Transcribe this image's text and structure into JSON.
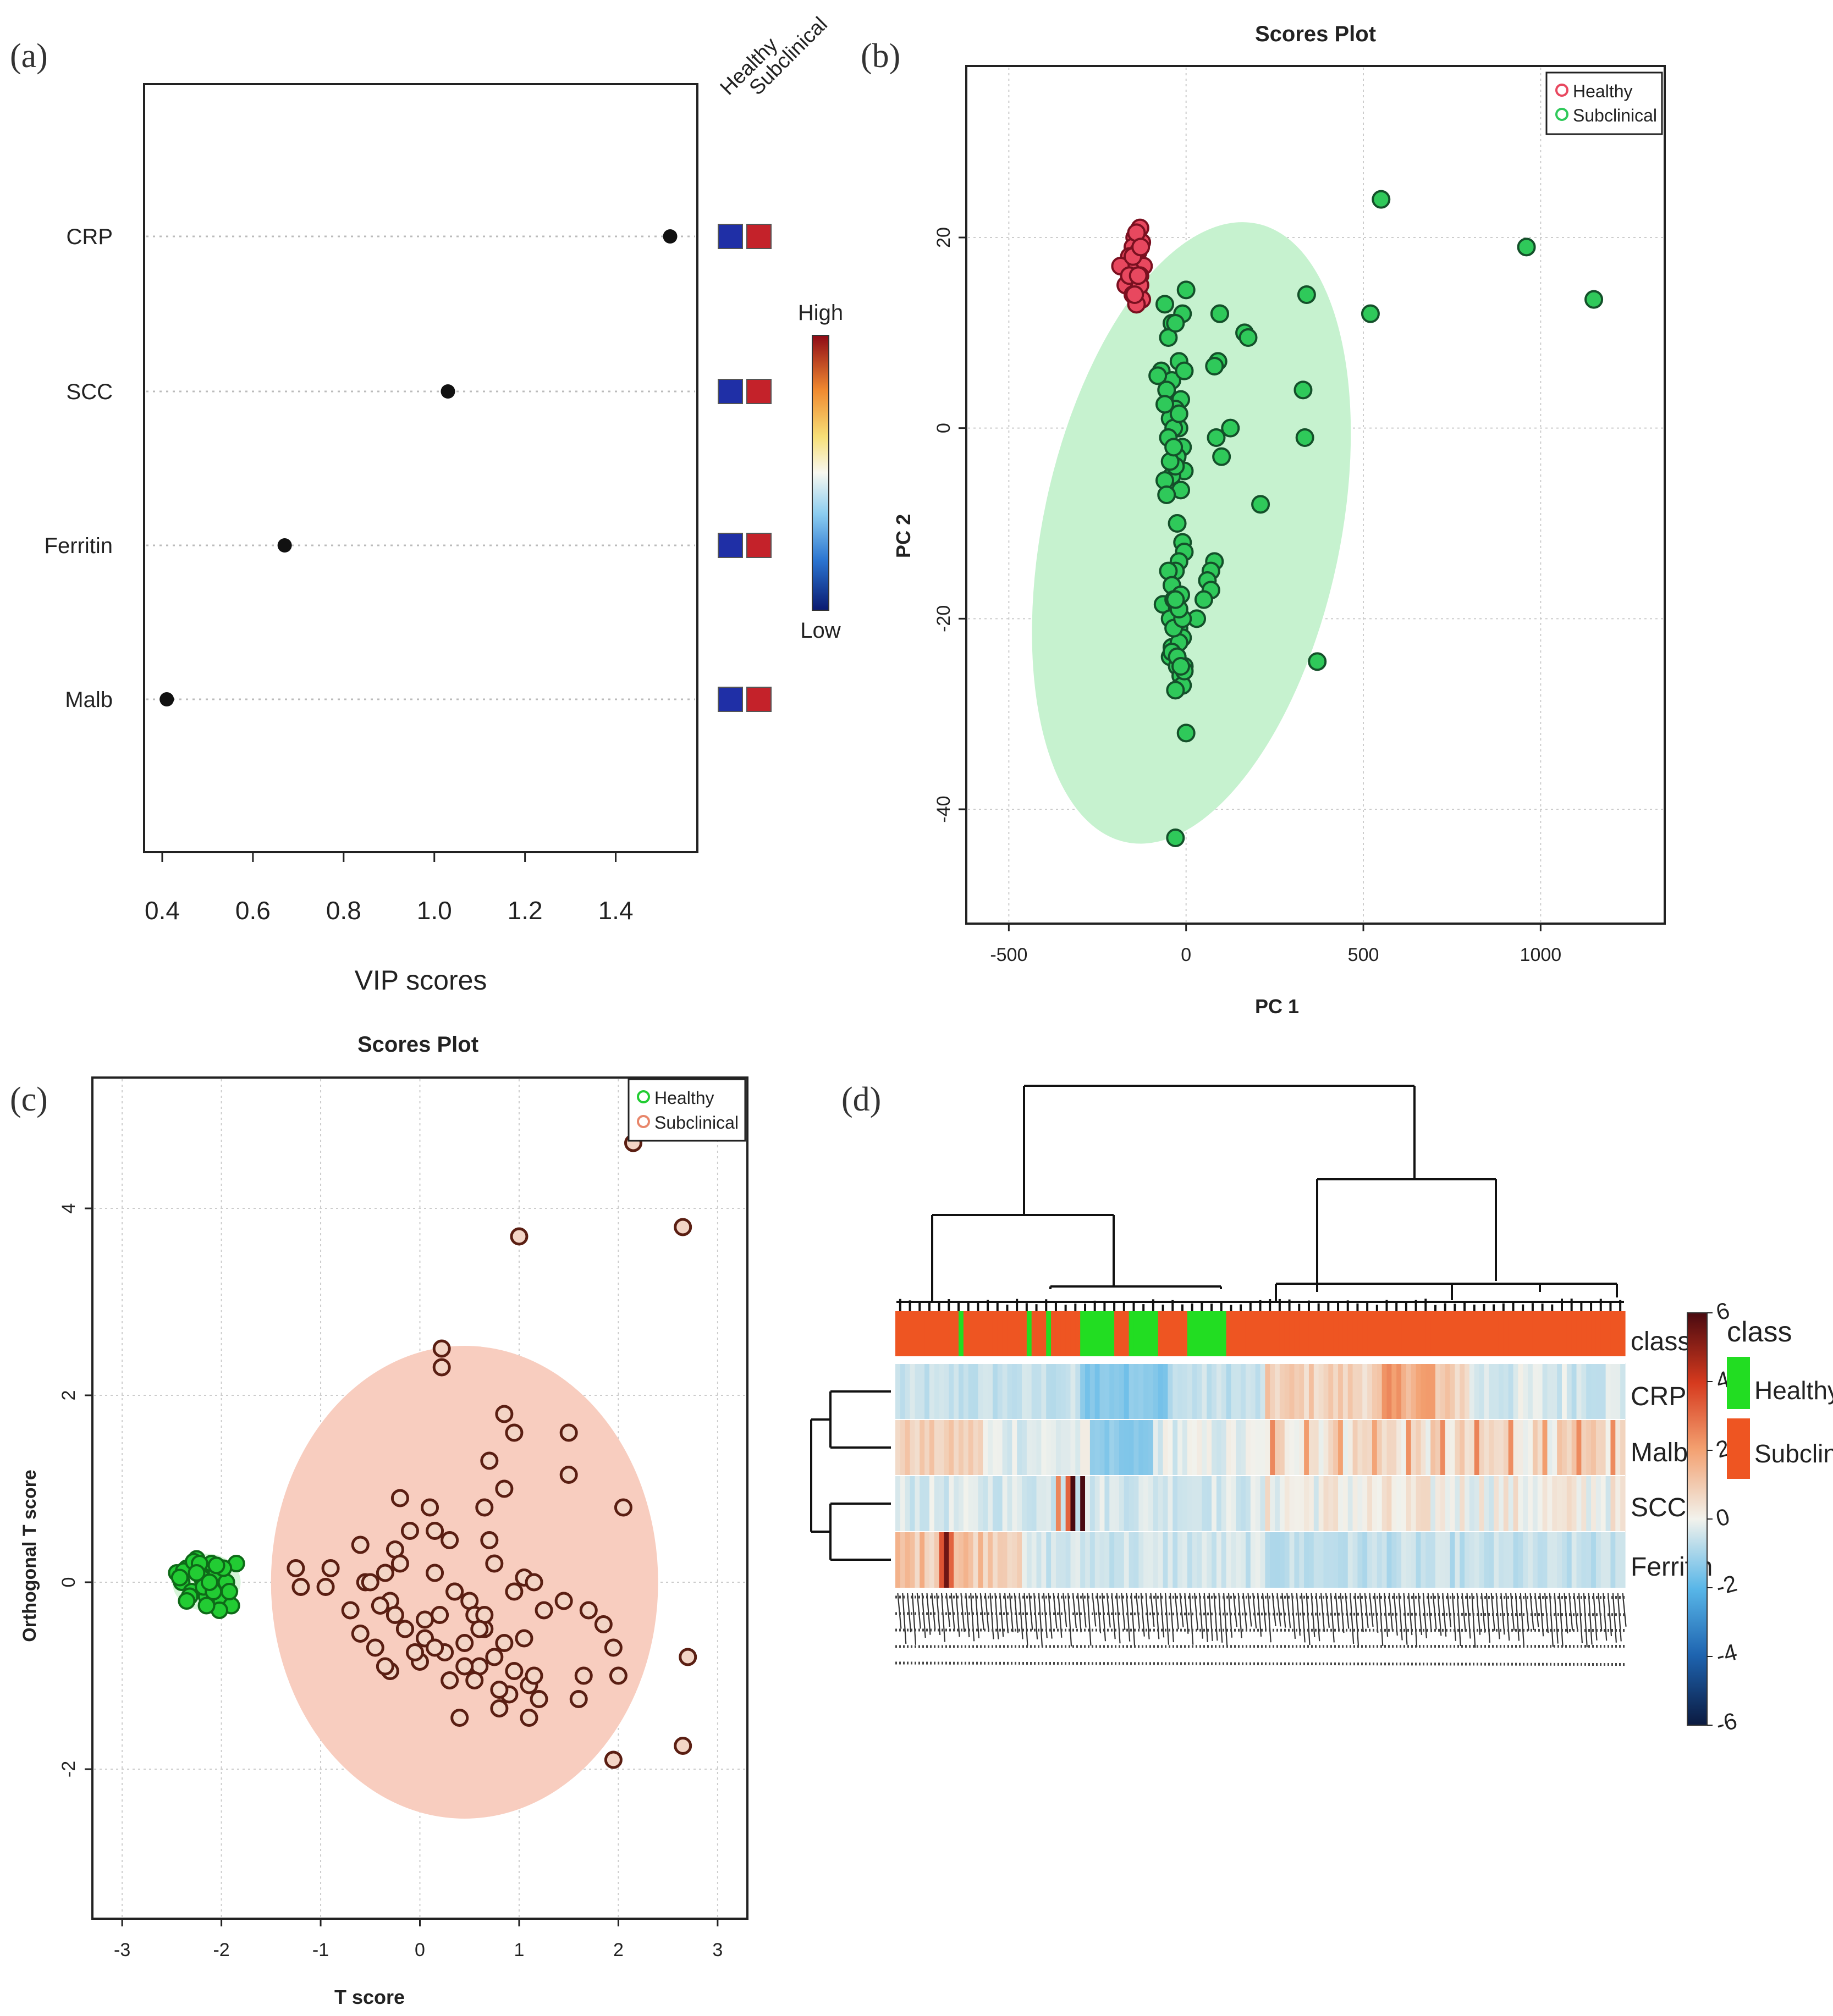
{
  "panel_labels": {
    "a": "(a)",
    "b": "(b)",
    "c": "(c)",
    "d": "(d)"
  },
  "colors": {
    "healthy_pca": "#e8485f",
    "subclinical_pca": "#2fc95a",
    "healthy_opls": "#22cc33",
    "subclinical_opls": "#c8543a",
    "ellipse_green": "#c6f2cf",
    "ellipse_salmon": "#f8cdbf",
    "vip_low": "#1f2fa6",
    "vip_high": "#c4222a",
    "heat_class_subclinical": "#ee5522",
    "heat_class_healthy": "#22dd22"
  },
  "chart_data": [
    {
      "id": "a",
      "type": "scatter",
      "subtype": "dot",
      "xlabel": "VIP scores",
      "xlim": [
        0.36,
        1.58
      ],
      "xticks": [
        0.4,
        0.6,
        0.8,
        1.0,
        1.2,
        1.4
      ],
      "xtick_labels": [
        "0.4",
        "0.6",
        "0.8",
        "1.0",
        "1.2",
        "1.4"
      ],
      "grid": "horizontal dotted",
      "categories": [
        "CRP",
        "SCC",
        "Ferritin",
        "Malb"
      ],
      "category_labels": [
        "CRP",
        "SCC",
        "Ferritin",
        "Malb"
      ],
      "values": [
        1.52,
        1.03,
        0.67,
        0.41
      ],
      "column_headers": [
        "Healthy",
        "Subclinical"
      ],
      "column_levels": [
        [
          "low",
          "high"
        ],
        [
          "low",
          "high"
        ],
        [
          "low",
          "high"
        ],
        [
          "low",
          "high"
        ]
      ],
      "colorbar": {
        "high_label": "High",
        "low_label": "Low"
      }
    },
    {
      "id": "b",
      "type": "scatter",
      "title": "Scores Plot",
      "xlabel": "PC 1",
      "ylabel": "PC 2",
      "xlim": [
        -620,
        1350
      ],
      "ylim": [
        -52,
        38
      ],
      "xticks": [
        -500,
        0,
        500,
        1000
      ],
      "xtick_labels": [
        "-500",
        "0",
        "500",
        "1000"
      ],
      "yticks": [
        -40,
        -20,
        0,
        20
      ],
      "ytick_labels": [
        "-40",
        "-20",
        "0",
        "20"
      ],
      "grid": true,
      "legend": "top-right",
      "series": [
        {
          "name": "Healthy",
          "x": [
            -130,
            -145,
            -125,
            -150,
            -135,
            -160,
            -140,
            -120,
            -155,
            -130,
            -145,
            -170,
            -135,
            -150,
            -125,
            -140,
            -185,
            -160,
            -130,
            -145,
            -140,
            -150,
            -135,
            -128
          ],
          "y": [
            21,
            20,
            19.5,
            19,
            18.5,
            18,
            17.5,
            17,
            16.5,
            16,
            15.5,
            15,
            14.5,
            14,
            13.5,
            13,
            17,
            16,
            15,
            14,
            20.5,
            18,
            16,
            19
          ]
        },
        {
          "name": "Subclinical",
          "x": [
            550,
            960,
            1150,
            520,
            340,
            330,
            335,
            210,
            165,
            175,
            95,
            95,
            90,
            125,
            80,
            100,
            85,
            0,
            -60,
            -40,
            -10,
            -50,
            -30,
            -20,
            -70,
            -40,
            -5,
            -55,
            -15,
            -30,
            -45,
            -80,
            -60,
            -20,
            -35,
            -50,
            -10,
            -25,
            -5,
            -40,
            -15,
            -60,
            -30,
            -45,
            -20,
            -35,
            -55,
            -25,
            -10,
            -5,
            -20,
            -30,
            -50,
            -40,
            -15,
            -65,
            -25,
            -35,
            -45,
            -20,
            -10,
            -35,
            -25,
            -40,
            80,
            70,
            60,
            70,
            50,
            30,
            -5,
            -45,
            -25,
            -15,
            -10,
            -30,
            -5,
            -20,
            -40,
            -25,
            -15,
            -35,
            -10,
            -20,
            -30,
            370,
            0,
            -30
          ],
          "y": [
            24,
            19,
            13.5,
            12,
            14,
            4,
            -1,
            -8,
            10,
            9.5,
            12,
            12,
            7,
            0,
            6.5,
            -3,
            -1,
            14.5,
            13,
            11,
            12,
            9.5,
            11,
            7,
            6,
            5,
            6,
            4,
            3,
            2,
            1,
            5.5,
            2.5,
            0,
            0,
            -1,
            -2,
            -3,
            -4.5,
            -5,
            -6.5,
            -5.5,
            -4,
            -3.5,
            1.5,
            -2,
            -7,
            -10,
            -12,
            -13,
            -14,
            -15,
            -15,
            -16.5,
            -17.5,
            -18.5,
            -19,
            -18,
            -20,
            -21,
            -22,
            -23,
            -24,
            -23,
            -14,
            -15,
            -16,
            -17,
            -18,
            -20,
            -25,
            -24,
            -25,
            -26,
            -27,
            -27.5,
            -25.5,
            -22.5,
            -23.5,
            -24,
            -25,
            -21,
            -20,
            -19,
            -18,
            -24.5,
            -32,
            -43
          ]
        }
      ]
    },
    {
      "id": "c",
      "type": "scatter",
      "title": "Scores Plot",
      "xlabel": "T score",
      "ylabel": "Orthogonal T score",
      "xlim": [
        -3.3,
        3.3
      ],
      "ylim": [
        -3.6,
        5.4
      ],
      "xticks": [
        -3,
        -2,
        -1,
        0,
        1,
        2,
        3
      ],
      "xtick_labels": [
        "-3",
        "-2",
        "-1",
        "0",
        "1",
        "2",
        "3"
      ],
      "yticks": [
        -2,
        0,
        2,
        4
      ],
      "ytick_labels": [
        "-2",
        "0",
        "2",
        "4"
      ],
      "grid": true,
      "legend": "top-right",
      "series": [
        {
          "name": "Healthy",
          "x": [
            -2.45,
            -2.4,
            -2.35,
            -2.3,
            -2.25,
            -2.2,
            -2.15,
            -2.1,
            -2.05,
            -2.0,
            -1.95,
            -1.9,
            -1.85,
            -2.38,
            -2.28,
            -2.18,
            -2.08,
            -1.98,
            -2.42,
            -2.32,
            -2.22,
            -2.12,
            -2.02,
            -1.92,
            -2.35,
            -2.25,
            -2.15,
            -2.05
          ],
          "y": [
            0.1,
            0.0,
            0.15,
            -0.1,
            0.25,
            0.05,
            -0.15,
            0.2,
            0.1,
            -0.2,
            0.0,
            -0.25,
            0.2,
            0.12,
            0.22,
            -0.05,
            -0.1,
            0.15,
            0.05,
            -0.15,
            0.2,
            0.0,
            -0.3,
            -0.1,
            -0.2,
            0.1,
            -0.25,
            0.18
          ]
        },
        {
          "name": "Subclinical",
          "x": [
            2.15,
            2.65,
            1.0,
            0.22,
            0.22,
            0.85,
            1.5,
            1.5,
            0.95,
            0.7,
            0.65,
            0.85,
            2.05,
            2.7,
            2.65,
            1.95,
            1.05,
            -1.25,
            -1.2,
            -0.9,
            -0.95,
            -0.6,
            -0.55,
            -0.25,
            -0.1,
            -0.2,
            0.1,
            0.15,
            0.3,
            -0.35,
            -0.5,
            -0.7,
            -0.3,
            -0.15,
            0.05,
            0.2,
            0.35,
            0.5,
            0.65,
            0.75,
            0.85,
            0.95,
            1.1,
            1.25,
            1.45,
            1.7,
            1.85,
            1.95,
            2.0,
            1.65,
            1.6,
            1.15,
            1.2,
            1.1,
            0.9,
            0.8,
            0.6,
            0.45,
            0.25,
            0.0,
            -0.15,
            -0.3,
            -0.45,
            -0.6,
            -0.4,
            -0.2,
            0.15,
            0.35,
            0.55,
            0.75,
            0.95,
            1.05,
            1.15,
            0.55,
            0.8,
            0.65,
            0.45,
            0.3,
            0.05,
            -0.05,
            -0.25,
            -0.35,
            0.4,
            0.6,
            0.15,
            0.7
          ],
          "y": [
            4.7,
            3.8,
            3.7,
            2.5,
            2.3,
            1.8,
            1.6,
            1.15,
            1.6,
            1.3,
            0.8,
            1.0,
            0.8,
            -0.8,
            -1.75,
            -1.9,
            -0.6,
            0.15,
            -0.05,
            0.15,
            -0.05,
            0.4,
            0.0,
            0.35,
            0.55,
            0.9,
            0.8,
            0.55,
            0.45,
            0.1,
            0.0,
            -0.3,
            -0.2,
            -0.5,
            -0.6,
            -0.35,
            -0.1,
            -0.2,
            -0.5,
            -0.8,
            -0.65,
            -0.95,
            -1.1,
            -0.3,
            -0.2,
            -0.3,
            -0.45,
            -0.7,
            -1.0,
            -1.0,
            -1.25,
            -1.0,
            -1.25,
            -1.45,
            -1.2,
            -1.35,
            -0.9,
            -0.65,
            -0.75,
            -0.85,
            -0.5,
            -0.95,
            -0.7,
            -0.55,
            -0.25,
            0.2,
            0.1,
            -0.1,
            -0.35,
            0.2,
            -0.1,
            0.05,
            0.0,
            -1.05,
            -1.15,
            -0.35,
            -0.9,
            -1.05,
            -0.4,
            -0.75,
            -0.35,
            -0.9,
            -1.45,
            -0.5,
            -0.7,
            0.45
          ],
          "_note": ""
        }
      ]
    },
    {
      "id": "d",
      "type": "heatmap",
      "rows": [
        "class",
        "CRP",
        "Malb",
        "SCC",
        "Ferritin"
      ],
      "row_labels": [
        "class",
        "CRP",
        "Malb",
        "SCC",
        "Ferritin"
      ],
      "legend_title": "class",
      "legend_items": [
        "Healthy",
        "Subclinical"
      ],
      "colorbar_ticks": [
        6,
        4,
        2,
        0,
        -2,
        -4,
        -6
      ],
      "colorbar_tick_labels": [
        "6",
        "4",
        "2",
        "0",
        "-2",
        "-4",
        "-6"
      ]
    }
  ]
}
